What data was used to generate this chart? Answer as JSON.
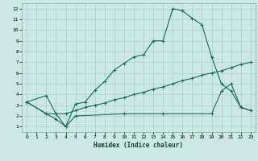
{
  "xlabel": "Humidex (Indice chaleur)",
  "bg_color": "#cce8e4",
  "grid_color": "#aacfca",
  "line_color": "#1a6b5a",
  "xlim": [
    -0.5,
    23.5
  ],
  "ylim": [
    0.5,
    12.5
  ],
  "xticks": [
    0,
    1,
    2,
    3,
    4,
    5,
    6,
    7,
    8,
    9,
    10,
    11,
    12,
    13,
    14,
    15,
    16,
    17,
    18,
    19,
    20,
    21,
    22,
    23
  ],
  "yticks": [
    1,
    2,
    3,
    4,
    5,
    6,
    7,
    8,
    9,
    10,
    11,
    12
  ],
  "line1_x": [
    0,
    2,
    3,
    4,
    5,
    6,
    7,
    8,
    9,
    10,
    11,
    12,
    13,
    14,
    15,
    16,
    17,
    18,
    19,
    20,
    21,
    22,
    23
  ],
  "line1_y": [
    3.3,
    3.9,
    2.2,
    1.0,
    3.1,
    3.3,
    4.4,
    5.2,
    6.3,
    6.9,
    7.5,
    7.7,
    9.0,
    9.0,
    12.0,
    11.8,
    11.1,
    10.5,
    7.5,
    5.0,
    4.3,
    2.8,
    2.5
  ],
  "line2_x": [
    0,
    2,
    3,
    4,
    5,
    6,
    7,
    8,
    9,
    10,
    11,
    12,
    13,
    14,
    15,
    16,
    17,
    18,
    19,
    20,
    21,
    22,
    23
  ],
  "line2_y": [
    3.3,
    2.2,
    2.2,
    2.2,
    2.5,
    2.8,
    3.0,
    3.2,
    3.5,
    3.7,
    4.0,
    4.2,
    4.5,
    4.7,
    5.0,
    5.3,
    5.5,
    5.8,
    6.0,
    6.2,
    6.5,
    6.8,
    7.0
  ],
  "line3_x": [
    0,
    2,
    3,
    4,
    5,
    10,
    14,
    19,
    20,
    21,
    22,
    23
  ],
  "line3_y": [
    3.3,
    2.2,
    1.7,
    1.0,
    2.0,
    2.2,
    2.2,
    2.2,
    4.3,
    5.0,
    2.8,
    2.5
  ]
}
